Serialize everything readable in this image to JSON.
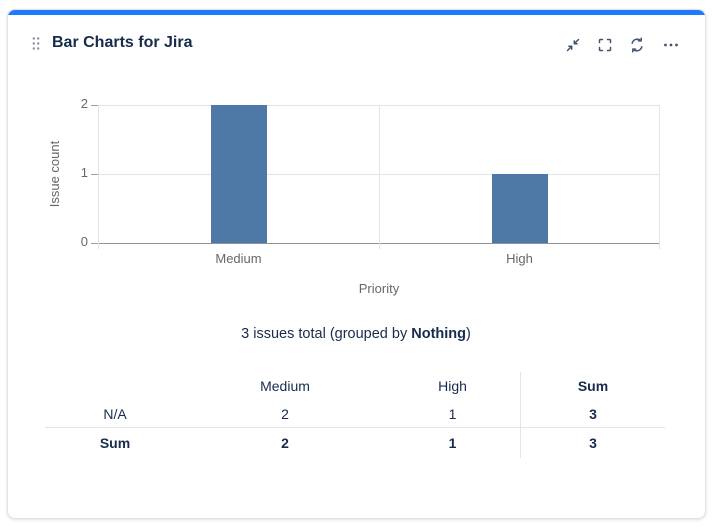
{
  "card": {
    "title": "Bar Charts for Jira",
    "accent_color": "#1D7AFC",
    "actions": [
      {
        "name": "collapse"
      },
      {
        "name": "fullscreen"
      },
      {
        "name": "refresh"
      },
      {
        "name": "more"
      }
    ]
  },
  "chart_data": {
    "type": "bar",
    "categories": [
      "Medium",
      "High"
    ],
    "values": [
      2,
      1
    ],
    "title": "",
    "xlabel": "Priority",
    "ylabel": "Issue count",
    "ylim": [
      0,
      2
    ],
    "yticks": [
      0,
      1,
      2
    ],
    "bar_color": "#4E79A7",
    "grid": true,
    "legend": "none"
  },
  "summary": {
    "prefix": "3 issues total (grouped by ",
    "bold": "Nothing",
    "suffix": ")"
  },
  "table": {
    "headers": [
      "",
      "Medium",
      "High",
      "Sum"
    ],
    "rows": [
      {
        "label": "N/A",
        "medium": "2",
        "high": "1",
        "sum": "3"
      },
      {
        "label": "Sum",
        "medium": "2",
        "high": "1",
        "sum": "3"
      }
    ]
  }
}
